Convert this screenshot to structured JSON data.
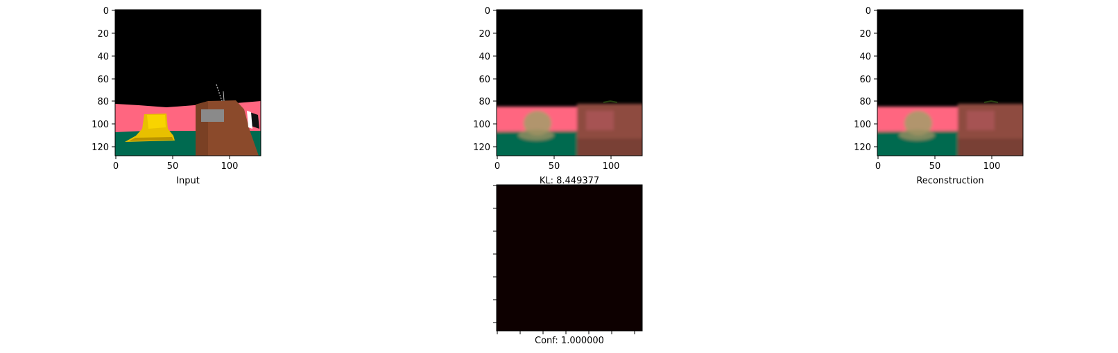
{
  "chart_data": [
    {
      "type": "image",
      "panel": "input",
      "xlabel": "Input",
      "x_ticks": [
        "0",
        "50",
        "100"
      ],
      "y_ticks": [
        "0",
        "20",
        "40",
        "60",
        "80",
        "100",
        "120"
      ],
      "xlim": [
        0,
        128
      ],
      "ylim": [
        128,
        0
      ],
      "colors": {
        "sky": "#000000",
        "wall": "#ff6680",
        "floor": "#006a50",
        "bell": "#e8c000",
        "crate": "#8b4a2b"
      }
    },
    {
      "type": "image",
      "panel": "reconstruction-middle",
      "xlabel": "KL: 8.449377",
      "x_ticks": [
        "0",
        "50",
        "100"
      ],
      "y_ticks": [
        "0",
        "20",
        "40",
        "60",
        "80",
        "100",
        "120"
      ],
      "xlim": [
        0,
        128
      ],
      "ylim": [
        128,
        0
      ],
      "colors": {
        "sky": "#000000",
        "wall": "#ff6680",
        "floor": "#006a50",
        "blob": "#a89a6a",
        "crate": "#8e4b40"
      }
    },
    {
      "type": "image",
      "panel": "reconstruction",
      "xlabel": "Reconstruction",
      "x_ticks": [
        "0",
        "50",
        "100"
      ],
      "y_ticks": [
        "0",
        "20",
        "40",
        "60",
        "80",
        "100",
        "120"
      ],
      "xlim": [
        0,
        128
      ],
      "ylim": [
        128,
        0
      ],
      "colors": {
        "sky": "#000000",
        "wall": "#ff6680",
        "floor": "#006a50",
        "blob": "#a89a6a",
        "crate": "#8e4b40"
      }
    },
    {
      "type": "heatmap",
      "panel": "confidence",
      "xlabel": "Conf: 1.000000",
      "values": [
        [
          1.0
        ]
      ],
      "colors": {
        "fill": "#0d0000"
      }
    }
  ]
}
